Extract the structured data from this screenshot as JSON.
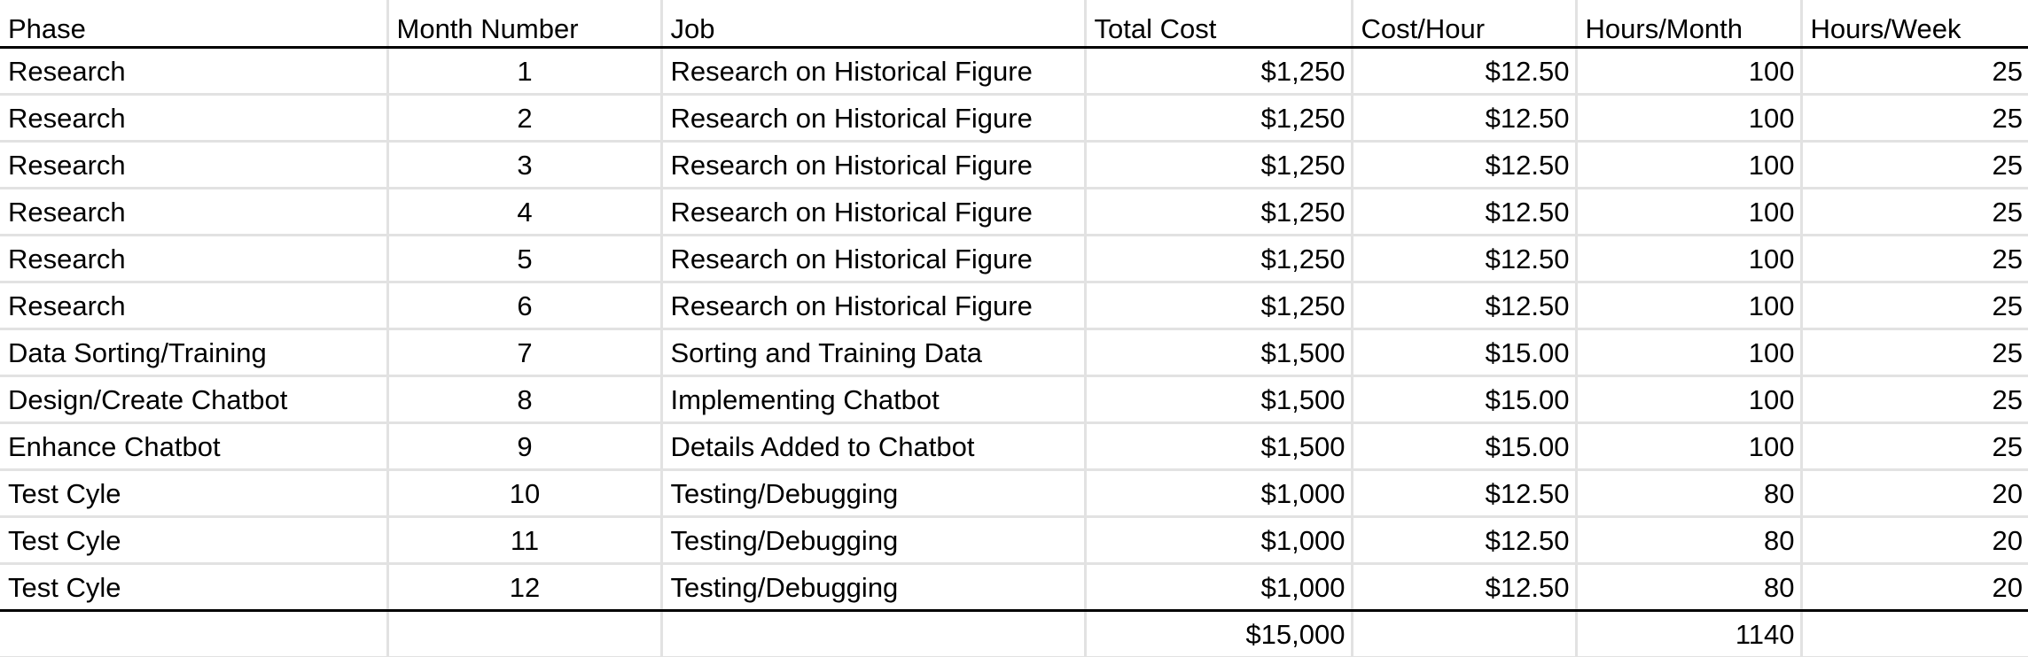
{
  "headers": [
    "Phase",
    "Month Number",
    "Job",
    "Total Cost",
    "Cost/Hour",
    "Hours/Month",
    "Hours/Week"
  ],
  "rows": [
    [
      "Research",
      "1",
      "Research on Historical Figure",
      "$1,250",
      "$12.50",
      "100",
      "25"
    ],
    [
      "Research",
      "2",
      "Research on Historical Figure",
      "$1,250",
      "$12.50",
      "100",
      "25"
    ],
    [
      "Research",
      "3",
      "Research on Historical Figure",
      "$1,250",
      "$12.50",
      "100",
      "25"
    ],
    [
      "Research",
      "4",
      "Research on Historical Figure",
      "$1,250",
      "$12.50",
      "100",
      "25"
    ],
    [
      "Research",
      "5",
      "Research on Historical Figure",
      "$1,250",
      "$12.50",
      "100",
      "25"
    ],
    [
      "Research",
      "6",
      "Research on Historical Figure",
      "$1,250",
      "$12.50",
      "100",
      "25"
    ],
    [
      "Data Sorting/Training",
      "7",
      "Sorting and Training Data",
      "$1,500",
      "$15.00",
      "100",
      "25"
    ],
    [
      "Design/Create Chatbot",
      "8",
      "Implementing Chatbot",
      "$1,500",
      "$15.00",
      "100",
      "25"
    ],
    [
      "Enhance Chatbot",
      "9",
      "Details Added to Chatbot",
      "$1,500",
      "$15.00",
      "100",
      "25"
    ],
    [
      "Test Cyle",
      "10",
      "Testing/Debugging",
      "$1,000",
      "$12.50",
      "80",
      "20"
    ],
    [
      "Test Cyle",
      "11",
      "Testing/Debugging",
      "$1,000",
      "$12.50",
      "80",
      "20"
    ],
    [
      "Test Cyle",
      "12",
      "Testing/Debugging",
      "$1,000",
      "$12.50",
      "80",
      "20"
    ]
  ],
  "totals": [
    "",
    "",
    "",
    "$15,000",
    "",
    "1140",
    ""
  ]
}
